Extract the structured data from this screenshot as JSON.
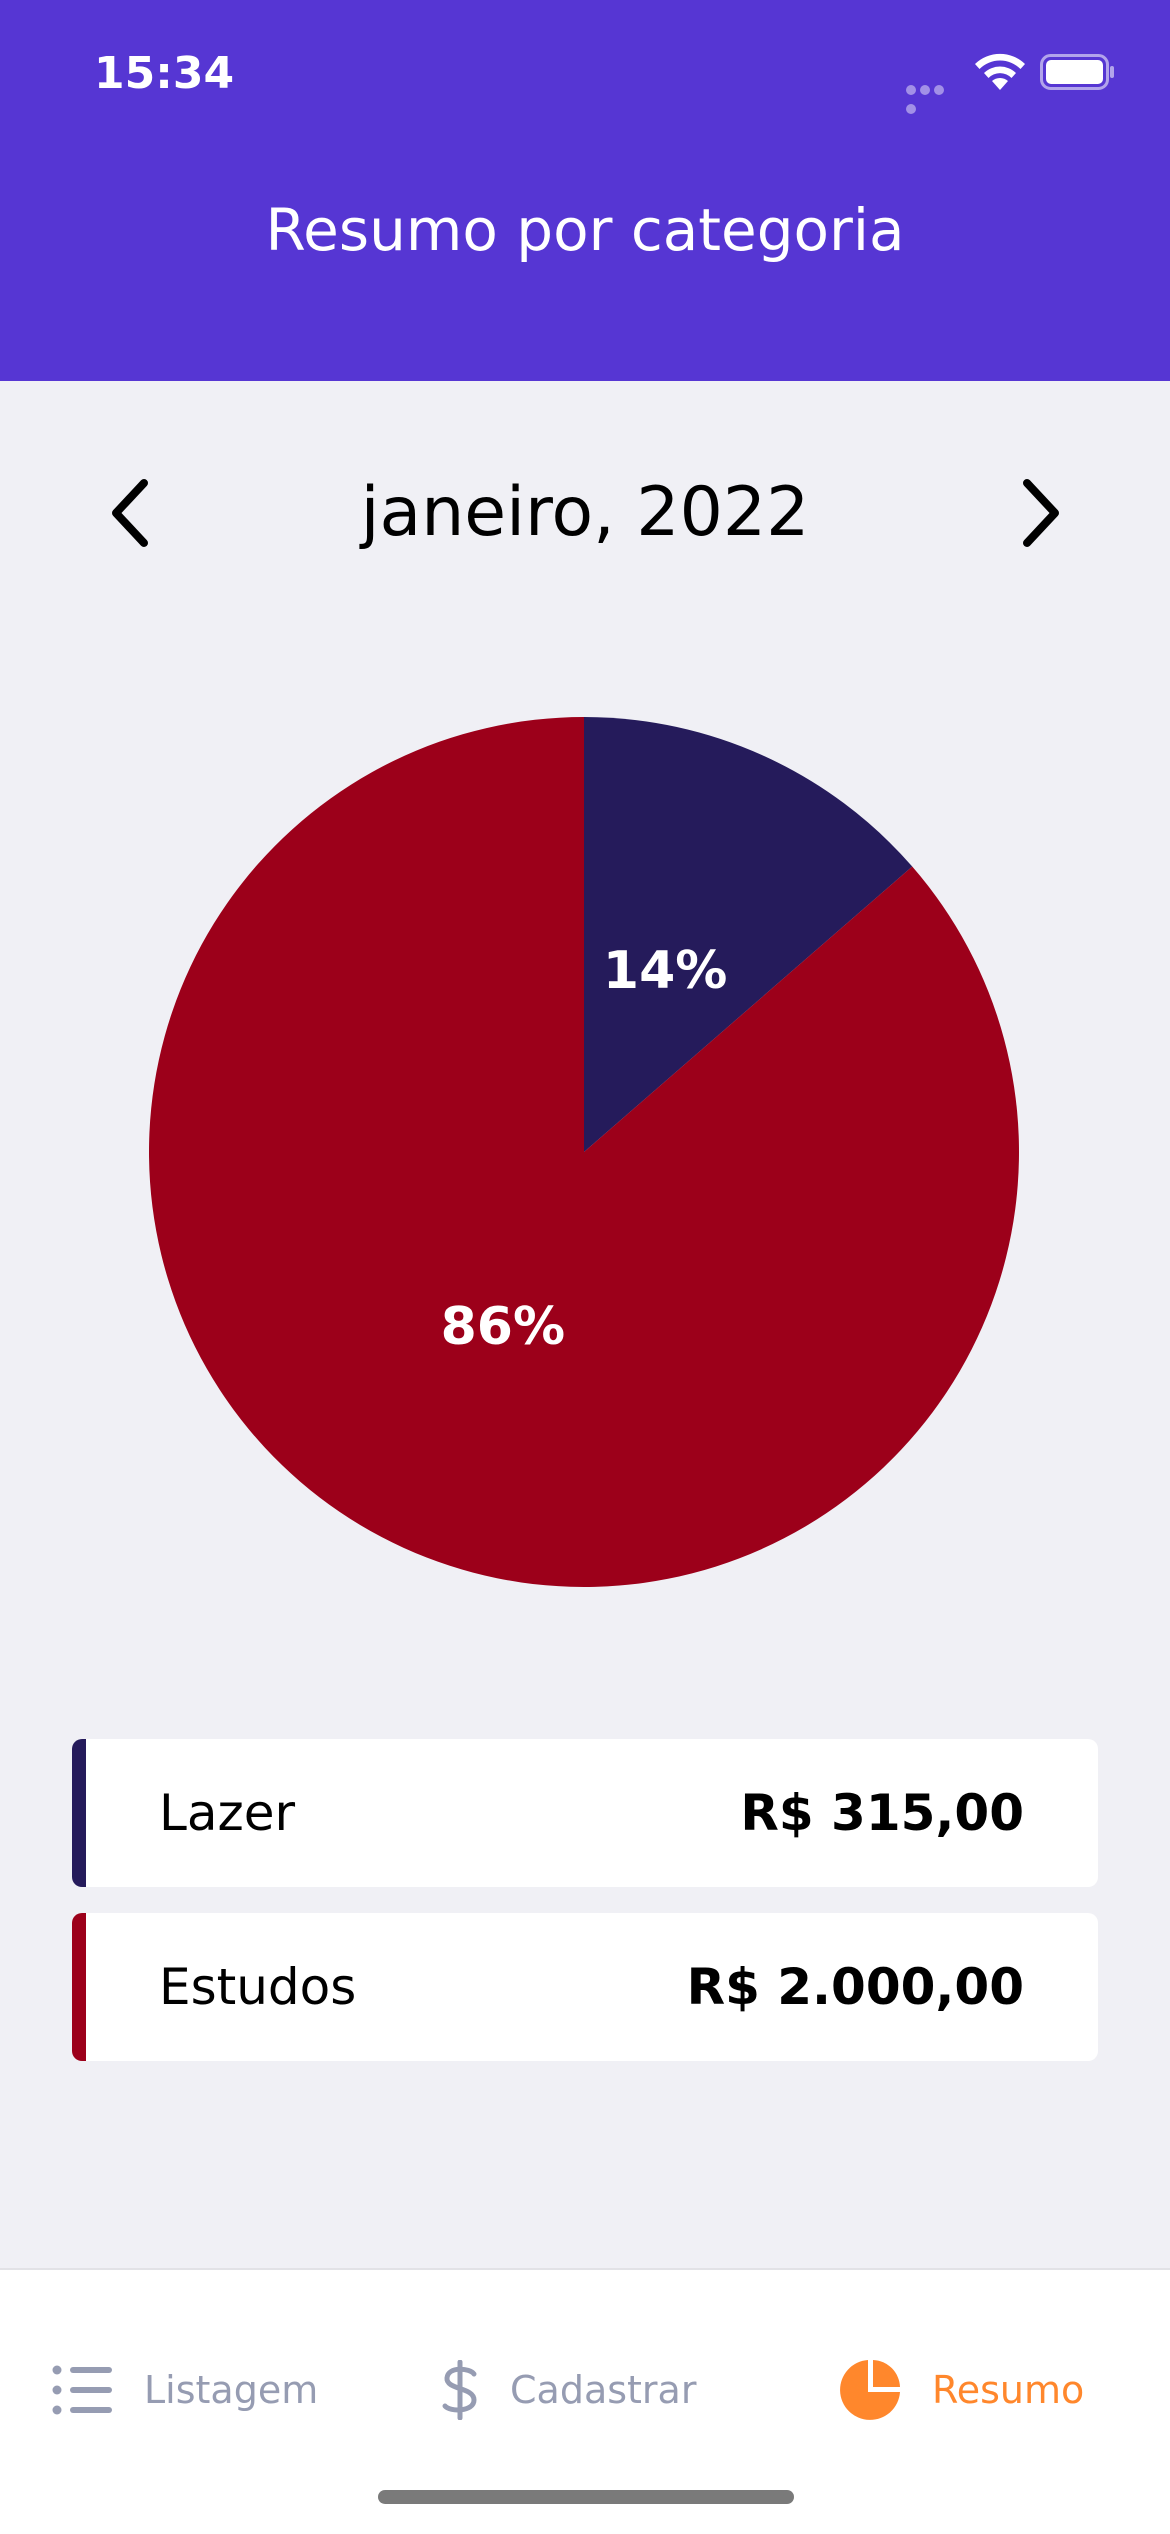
{
  "status_bar": {
    "time": "15:34"
  },
  "header": {
    "title": "Resumo por categoria",
    "background_color": "#5636D3"
  },
  "month_selector": {
    "label": "janeiro, 2022",
    "prev_icon": "chevron-left-icon",
    "next_icon": "chevron-right-icon"
  },
  "chart_data": {
    "type": "pie",
    "slices": [
      {
        "name": "Lazer",
        "value": 315.0,
        "percent_label": "14%",
        "color": "#251B5B"
      },
      {
        "name": "Estudos",
        "value": 2000.0,
        "percent_label": "86%",
        "color": "#9C001A"
      }
    ]
  },
  "categories": [
    {
      "name": "Lazer",
      "amount": "R$ 315,00",
      "color": "#251B5B"
    },
    {
      "name": "Estudos",
      "amount": "R$ 2.000,00",
      "color": "#9C001A"
    }
  ],
  "tabs": [
    {
      "label": "Listagem",
      "icon": "list-icon",
      "active": false
    },
    {
      "label": "Cadastrar",
      "icon": "dollar-icon",
      "active": false
    },
    {
      "label": "Resumo",
      "icon": "pie-chart-icon",
      "active": true
    }
  ],
  "colors": {
    "active_tab": "#FF872C",
    "inactive_tab": "#969CB2",
    "background": "#F0F0F5"
  }
}
